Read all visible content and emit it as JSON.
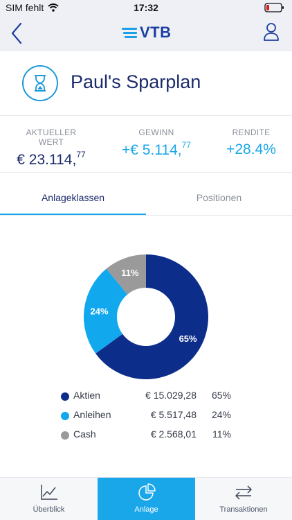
{
  "status_bar": {
    "carrier": "SIM fehlt",
    "time": "17:32"
  },
  "header": {
    "logo_text": "VTB",
    "brand_color": "#1b3fa0",
    "accent_color": "#1aa0e6",
    "back_icon": "chevron-left-icon",
    "user_icon": "person-icon"
  },
  "plan": {
    "title": "Paul's Sparplan",
    "icon": "hourglass-icon"
  },
  "metrics": {
    "current_value": {
      "label": "AKTUELLER WERT",
      "main": "€ 23.114,",
      "cents": "77",
      "color": "#1a2b6b"
    },
    "profit": {
      "label": "GEWINN",
      "main": "+€ 5.114,",
      "cents": "77",
      "color": "#1aa7ea"
    },
    "yield": {
      "label": "RENDITE",
      "value": "+28.4%",
      "color": "#1aa7ea"
    }
  },
  "tabs": {
    "active": "Anlageklassen",
    "inactive": "Positionen"
  },
  "chart_data": {
    "type": "pie",
    "categories": [
      "Aktien",
      "Anleihen",
      "Cash"
    ],
    "values": [
      65,
      24,
      11
    ],
    "labels": [
      "65%",
      "24%",
      "11%"
    ],
    "colors": [
      "#0d2d8a",
      "#12a8ee",
      "#9a9a9a"
    ]
  },
  "legend": [
    {
      "name": "Aktien",
      "amount": "€ 15.029,28",
      "pct": "65%",
      "color": "#0d2d8a"
    },
    {
      "name": "Anleihen",
      "amount": "€ 5.517,48",
      "pct": "24%",
      "color": "#12a8ee"
    },
    {
      "name": "Cash",
      "amount": "€ 2.568,01",
      "pct": "11%",
      "color": "#9a9a9a"
    }
  ],
  "tabbar": {
    "overview": "Überblick",
    "investment": "Anlage",
    "transactions": "Transaktionen",
    "active_color": "#1aa7ea"
  }
}
